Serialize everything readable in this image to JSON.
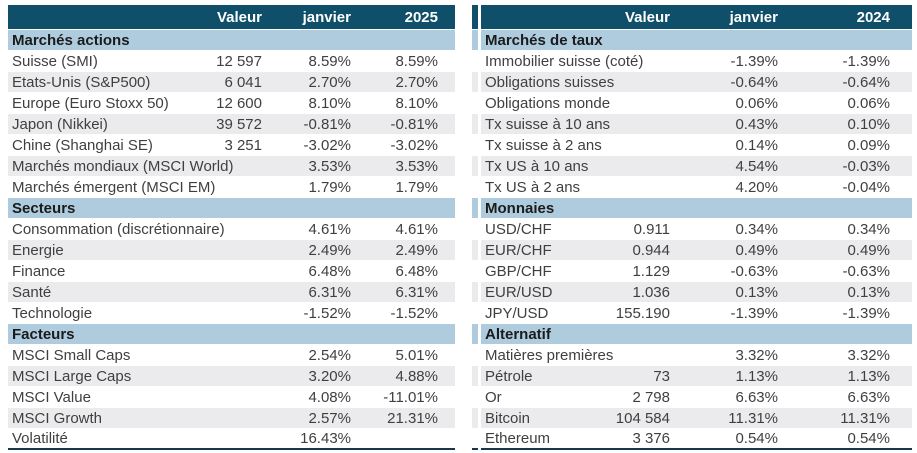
{
  "colors": {
    "header_bg": "#0f4f6a",
    "section_bg": "#afccdf",
    "row_alt_bg": "#ebebed",
    "row_text": "#3f3f3f",
    "section_text": "#1b1b1b",
    "header_text": "#ffffff",
    "bottom_border": "#16384a"
  },
  "tables": [
    {
      "name": "marches-actions",
      "columns": [
        "",
        "Valeur",
        "janvier",
        "2025"
      ],
      "sections": [
        {
          "title": "Marchés actions",
          "rows": [
            {
              "label": "Suisse (SMI)",
              "valeur": "12 597",
              "janvier": "8.59%",
              "year": "8.59%"
            },
            {
              "label": "Etats-Unis (S&P500)",
              "valeur": "6 041",
              "janvier": "2.70%",
              "year": "2.70%"
            },
            {
              "label": "Europe (Euro Stoxx 50)",
              "valeur": "12 600",
              "janvier": "8.10%",
              "year": "8.10%"
            },
            {
              "label": "Japon (Nikkei)",
              "valeur": "39 572",
              "janvier": "-0.81%",
              "year": "-0.81%"
            },
            {
              "label": "Chine (Shanghai SE)",
              "valeur": "3 251",
              "janvier": "-3.02%",
              "year": "-3.02%"
            },
            {
              "label": "Marchés mondiaux (MSCI World)",
              "valeur": "",
              "janvier": "3.53%",
              "year": "3.53%"
            },
            {
              "label": "Marchés émergent (MSCI EM)",
              "valeur": "",
              "janvier": "1.79%",
              "year": "1.79%"
            }
          ]
        },
        {
          "title": "Secteurs",
          "rows": [
            {
              "label": "Consommation (discrétionnaire)",
              "valeur": "",
              "janvier": "4.61%",
              "year": "4.61%"
            },
            {
              "label": "Energie",
              "valeur": "",
              "janvier": "2.49%",
              "year": "2.49%"
            },
            {
              "label": "Finance",
              "valeur": "",
              "janvier": "6.48%",
              "year": "6.48%"
            },
            {
              "label": "Santé",
              "valeur": "",
              "janvier": "6.31%",
              "year": "6.31%"
            },
            {
              "label": "Technologie",
              "valeur": "",
              "janvier": "-1.52%",
              "year": "-1.52%"
            }
          ]
        },
        {
          "title": "Facteurs",
          "rows": [
            {
              "label": "MSCI Small Caps",
              "valeur": "",
              "janvier": "2.54%",
              "year": "5.01%"
            },
            {
              "label": "MSCI Large Caps",
              "valeur": "",
              "janvier": "3.20%",
              "year": "4.88%"
            },
            {
              "label": "MSCI Value",
              "valeur": "",
              "janvier": "4.08%",
              "year": "-11.01%"
            },
            {
              "label": "MSCI Growth",
              "valeur": "",
              "janvier": "2.57%",
              "year": "21.31%"
            },
            {
              "label": "Volatilité",
              "valeur": "",
              "janvier": "16.43%",
              "year": ""
            }
          ]
        }
      ]
    },
    {
      "name": "marches-de-taux",
      "columns": [
        "",
        "Valeur",
        "janvier",
        "2024"
      ],
      "sections": [
        {
          "title": "Marchés de taux",
          "rows": [
            {
              "label": "Immobilier suisse (coté)",
              "valeur": "",
              "janvier": "-1.39%",
              "year": "-1.39%"
            },
            {
              "label": "Obligations suisses",
              "valeur": "",
              "janvier": "-0.64%",
              "year": "-0.64%"
            },
            {
              "label": "Obligations monde",
              "valeur": "",
              "janvier": "0.06%",
              "year": "0.06%"
            },
            {
              "label": "Tx suisse à 10 ans",
              "valeur": "",
              "janvier": "0.43%",
              "year": "0.10%"
            },
            {
              "label": "Tx suisse à 2 ans",
              "valeur": "",
              "janvier": "0.14%",
              "year": "0.09%"
            },
            {
              "label": "Tx US à 10 ans",
              "valeur": "",
              "janvier": "4.54%",
              "year": "-0.03%"
            },
            {
              "label": "Tx US à 2 ans",
              "valeur": "",
              "janvier": "4.20%",
              "year": "-0.04%"
            }
          ]
        },
        {
          "title": "Monnaies",
          "rows": [
            {
              "label": "USD/CHF",
              "valeur": "0.911",
              "janvier": "0.34%",
              "year": "0.34%"
            },
            {
              "label": "EUR/CHF",
              "valeur": "0.944",
              "janvier": "0.49%",
              "year": "0.49%"
            },
            {
              "label": "GBP/CHF",
              "valeur": "1.129",
              "janvier": "-0.63%",
              "year": "-0.63%"
            },
            {
              "label": "EUR/USD",
              "valeur": "1.036",
              "janvier": "0.13%",
              "year": "0.13%"
            },
            {
              "label": "JPY/USD",
              "valeur": "155.190",
              "janvier": "-1.39%",
              "year": "-1.39%"
            }
          ]
        },
        {
          "title": "Alternatif",
          "rows": [
            {
              "label": "Matières premières",
              "valeur": "",
              "janvier": "3.32%",
              "year": "3.32%"
            },
            {
              "label": "Pétrole",
              "valeur": "73",
              "janvier": "1.13%",
              "year": "1.13%"
            },
            {
              "label": "Or",
              "valeur": "2 798",
              "janvier": "6.63%",
              "year": "6.63%"
            },
            {
              "label": "Bitcoin",
              "valeur": "104 584",
              "janvier": "11.31%",
              "year": "11.31%"
            },
            {
              "label": "Ethereum",
              "valeur": "3 376",
              "janvier": "0.54%",
              "year": "0.54%"
            }
          ]
        }
      ]
    }
  ]
}
